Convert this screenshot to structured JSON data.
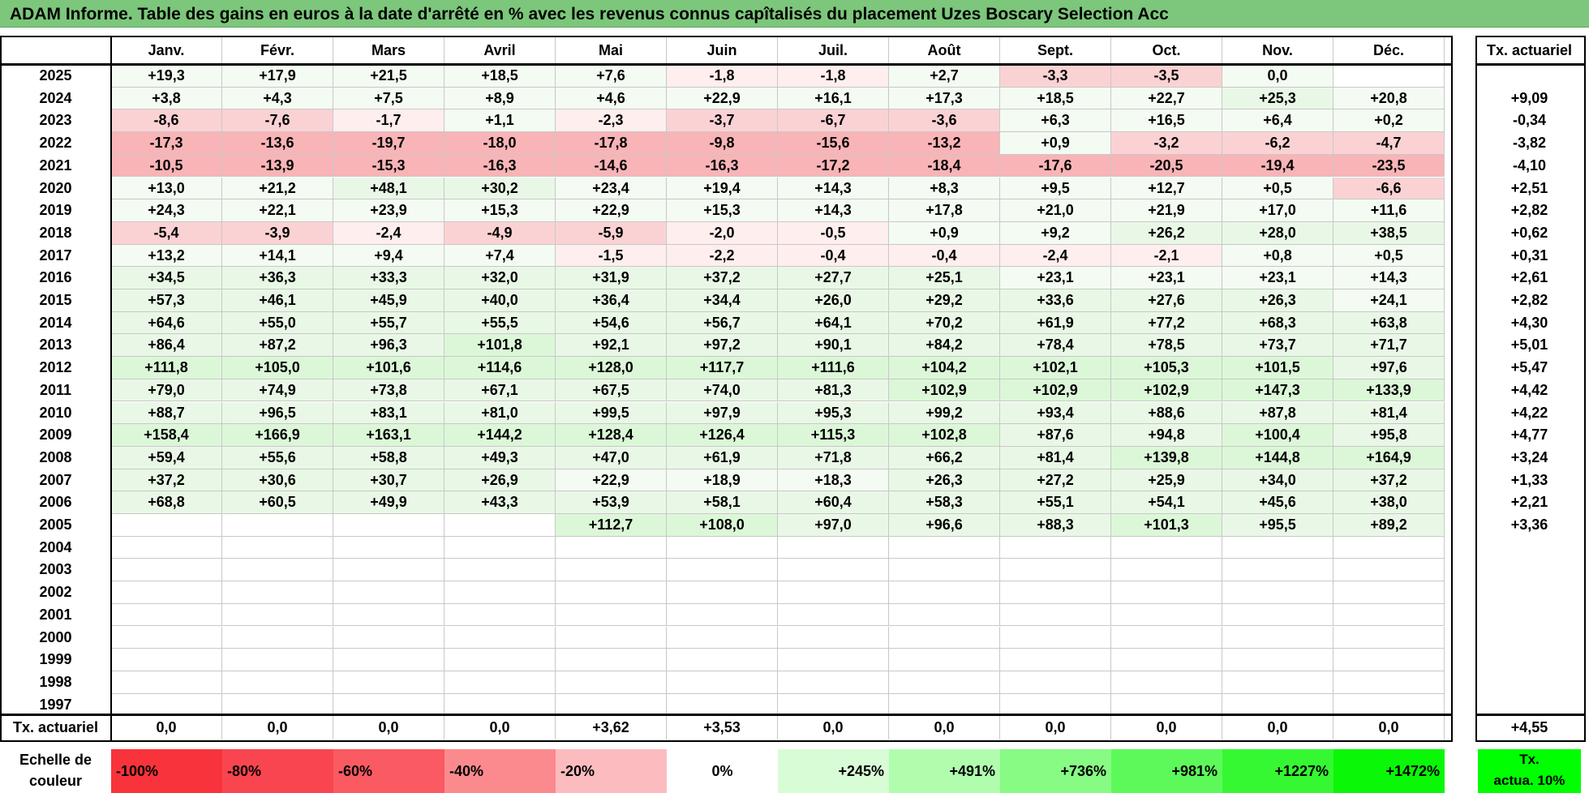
{
  "title": "ADAM Informe. Table des gains en euros à la date d'arrêté en % avec les revenus connus capîtalisés du placement Uzes Boscary Selection Acc",
  "months": [
    "Janv.",
    "Févr.",
    "Mars",
    "Avril",
    "Mai",
    "Juin",
    "Juil.",
    "Août",
    "Sept.",
    "Oct.",
    "Nov.",
    "Déc."
  ],
  "tx_header": "Tx. actuariel",
  "rows": [
    {
      "year": "2025",
      "values": [
        "+19,3",
        "+17,9",
        "+21,5",
        "+18,5",
        "+7,6",
        "-1,8",
        "-1,8",
        "+2,7",
        "-3,3",
        "-3,5",
        "0,0",
        ""
      ],
      "tx": ""
    },
    {
      "year": "2024",
      "values": [
        "+3,8",
        "+4,3",
        "+7,5",
        "+8,9",
        "+4,6",
        "+22,9",
        "+16,1",
        "+17,3",
        "+18,5",
        "+22,7",
        "+25,3",
        "+20,8"
      ],
      "tx": "+9,09"
    },
    {
      "year": "2023",
      "values": [
        "-8,6",
        "-7,6",
        "-1,7",
        "+1,1",
        "-2,3",
        "-3,7",
        "-6,7",
        "-3,6",
        "+6,3",
        "+16,5",
        "+6,4",
        "+0,2"
      ],
      "tx": "-0,34"
    },
    {
      "year": "2022",
      "values": [
        "-17,3",
        "-13,6",
        "-19,7",
        "-18,0",
        "-17,8",
        "-9,8",
        "-15,6",
        "-13,2",
        "+0,9",
        "-3,2",
        "-6,2",
        "-4,7"
      ],
      "tx": "-3,82"
    },
    {
      "year": "2021",
      "values": [
        "-10,5",
        "-13,9",
        "-15,3",
        "-16,3",
        "-14,6",
        "-16,3",
        "-17,2",
        "-18,4",
        "-17,6",
        "-20,5",
        "-19,4",
        "-23,5"
      ],
      "tx": "-4,10"
    },
    {
      "year": "2020",
      "values": [
        "+13,0",
        "+21,2",
        "+48,1",
        "+30,2",
        "+23,4",
        "+19,4",
        "+14,3",
        "+8,3",
        "+9,5",
        "+12,7",
        "+0,5",
        "-6,6"
      ],
      "tx": "+2,51"
    },
    {
      "year": "2019",
      "values": [
        "+24,3",
        "+22,1",
        "+23,9",
        "+15,3",
        "+22,9",
        "+15,3",
        "+14,3",
        "+17,8",
        "+21,0",
        "+21,9",
        "+17,0",
        "+11,6"
      ],
      "tx": "+2,82"
    },
    {
      "year": "2018",
      "values": [
        "-5,4",
        "-3,9",
        "-2,4",
        "-4,9",
        "-5,9",
        "-2,0",
        "-0,5",
        "+0,9",
        "+9,2",
        "+26,2",
        "+28,0",
        "+38,5"
      ],
      "tx": "+0,62"
    },
    {
      "year": "2017",
      "values": [
        "+13,2",
        "+14,1",
        "+9,4",
        "+7,4",
        "-1,5",
        "-2,2",
        "-0,4",
        "-0,4",
        "-2,4",
        "-2,1",
        "+0,8",
        "+0,5"
      ],
      "tx": "+0,31"
    },
    {
      "year": "2016",
      "values": [
        "+34,5",
        "+36,3",
        "+33,3",
        "+32,0",
        "+31,9",
        "+37,2",
        "+27,7",
        "+25,1",
        "+23,1",
        "+23,1",
        "+23,1",
        "+14,3"
      ],
      "tx": "+2,61"
    },
    {
      "year": "2015",
      "values": [
        "+57,3",
        "+46,1",
        "+45,9",
        "+40,0",
        "+36,4",
        "+34,4",
        "+26,0",
        "+29,2",
        "+33,6",
        "+27,6",
        "+26,3",
        "+24,1"
      ],
      "tx": "+2,82"
    },
    {
      "year": "2014",
      "values": [
        "+64,6",
        "+55,0",
        "+55,7",
        "+55,5",
        "+54,6",
        "+56,7",
        "+64,1",
        "+70,2",
        "+61,9",
        "+77,2",
        "+68,3",
        "+63,8"
      ],
      "tx": "+4,30"
    },
    {
      "year": "2013",
      "values": [
        "+86,4",
        "+87,2",
        "+96,3",
        "+101,8",
        "+92,1",
        "+97,2",
        "+90,1",
        "+84,2",
        "+78,4",
        "+78,5",
        "+73,7",
        "+71,7"
      ],
      "tx": "+5,01"
    },
    {
      "year": "2012",
      "values": [
        "+111,8",
        "+105,0",
        "+101,6",
        "+114,6",
        "+128,0",
        "+117,7",
        "+111,6",
        "+104,2",
        "+102,1",
        "+105,3",
        "+101,5",
        "+97,6"
      ],
      "tx": "+5,47"
    },
    {
      "year": "2011",
      "values": [
        "+79,0",
        "+74,9",
        "+73,8",
        "+67,1",
        "+67,5",
        "+74,0",
        "+81,3",
        "+102,9",
        "+102,9",
        "+102,9",
        "+147,3",
        "+133,9"
      ],
      "tx": "+4,42"
    },
    {
      "year": "2010",
      "values": [
        "+88,7",
        "+96,5",
        "+83,1",
        "+81,0",
        "+99,5",
        "+97,9",
        "+95,3",
        "+99,2",
        "+93,4",
        "+88,6",
        "+87,8",
        "+81,4"
      ],
      "tx": "+4,22"
    },
    {
      "year": "2009",
      "values": [
        "+158,4",
        "+166,9",
        "+163,1",
        "+144,2",
        "+128,4",
        "+126,4",
        "+115,3",
        "+102,8",
        "+87,6",
        "+94,8",
        "+100,4",
        "+95,8"
      ],
      "tx": "+4,77"
    },
    {
      "year": "2008",
      "values": [
        "+59,4",
        "+55,6",
        "+58,8",
        "+49,3",
        "+47,0",
        "+61,9",
        "+71,8",
        "+66,2",
        "+81,4",
        "+139,8",
        "+144,8",
        "+164,9"
      ],
      "tx": "+3,24"
    },
    {
      "year": "2007",
      "values": [
        "+37,2",
        "+30,6",
        "+30,7",
        "+26,9",
        "+22,9",
        "+18,9",
        "+18,3",
        "+26,3",
        "+27,2",
        "+25,9",
        "+34,0",
        "+37,2"
      ],
      "tx": "+1,33"
    },
    {
      "year": "2006",
      "values": [
        "+68,8",
        "+60,5",
        "+49,9",
        "+43,3",
        "+53,9",
        "+58,1",
        "+60,4",
        "+58,3",
        "+55,1",
        "+54,1",
        "+45,6",
        "+38,0"
      ],
      "tx": "+2,21"
    },
    {
      "year": "2005",
      "values": [
        "",
        "",
        "",
        "",
        "+112,7",
        "+108,0",
        "+97,0",
        "+96,6",
        "+88,3",
        "+101,3",
        "+95,5",
        "+89,2"
      ],
      "tx": "+3,36"
    },
    {
      "year": "2004",
      "values": [
        "",
        "",
        "",
        "",
        "",
        "",
        "",
        "",
        "",
        "",
        "",
        ""
      ],
      "tx": ""
    },
    {
      "year": "2003",
      "values": [
        "",
        "",
        "",
        "",
        "",
        "",
        "",
        "",
        "",
        "",
        "",
        ""
      ],
      "tx": ""
    },
    {
      "year": "2002",
      "values": [
        "",
        "",
        "",
        "",
        "",
        "",
        "",
        "",
        "",
        "",
        "",
        ""
      ],
      "tx": ""
    },
    {
      "year": "2001",
      "values": [
        "",
        "",
        "",
        "",
        "",
        "",
        "",
        "",
        "",
        "",
        "",
        ""
      ],
      "tx": ""
    },
    {
      "year": "2000",
      "values": [
        "",
        "",
        "",
        "",
        "",
        "",
        "",
        "",
        "",
        "",
        "",
        ""
      ],
      "tx": ""
    },
    {
      "year": "1999",
      "values": [
        "",
        "",
        "",
        "",
        "",
        "",
        "",
        "",
        "",
        "",
        "",
        ""
      ],
      "tx": ""
    },
    {
      "year": "1998",
      "values": [
        "",
        "",
        "",
        "",
        "",
        "",
        "",
        "",
        "",
        "",
        "",
        ""
      ],
      "tx": ""
    },
    {
      "year": "1997",
      "values": [
        "",
        "",
        "",
        "",
        "",
        "",
        "",
        "",
        "",
        "",
        "",
        ""
      ],
      "tx": ""
    }
  ],
  "footer": {
    "label": "Tx. actuariel",
    "values": [
      "0,0",
      "0,0",
      "0,0",
      "0,0",
      "+3,62",
      "+3,53",
      "0,0",
      "0,0",
      "0,0",
      "0,0",
      "0,0",
      "0,0"
    ],
    "tx": "+4,55"
  },
  "legend": {
    "label_line1": "Echelle de",
    "label_line2": "couleur",
    "items": [
      {
        "text": "-100%",
        "color": "#f8333b"
      },
      {
        "text": "-80%",
        "color": "#f94550"
      },
      {
        "text": "-60%",
        "color": "#fa5a62"
      },
      {
        "text": "-40%",
        "color": "#fb8a8e"
      },
      {
        "text": "-20%",
        "color": "#fcbcbf"
      },
      {
        "text": "0%",
        "color": "#ffffff"
      },
      {
        "text": "+245%",
        "color": "#d8fdd6"
      },
      {
        "text": "+491%",
        "color": "#b0fdae"
      },
      {
        "text": "+736%",
        "color": "#87fb84"
      },
      {
        "text": "+981%",
        "color": "#5df95a"
      },
      {
        "text": "+1227%",
        "color": "#35f832"
      },
      {
        "text": "+1472%",
        "color": "#0af707"
      }
    ],
    "tx_line1": "Tx.",
    "tx_line2": "actua. 10%",
    "tx_color": "#00ff00"
  },
  "colors": {
    "title_bar": "#7cc77b",
    "negative_scale": [
      "#ffeeee",
      "#fbd2d4",
      "#f9b4b7"
    ],
    "positive_scale": [
      "#f4fbf2",
      "#e9f8e6",
      "#dcf7d8"
    ]
  }
}
